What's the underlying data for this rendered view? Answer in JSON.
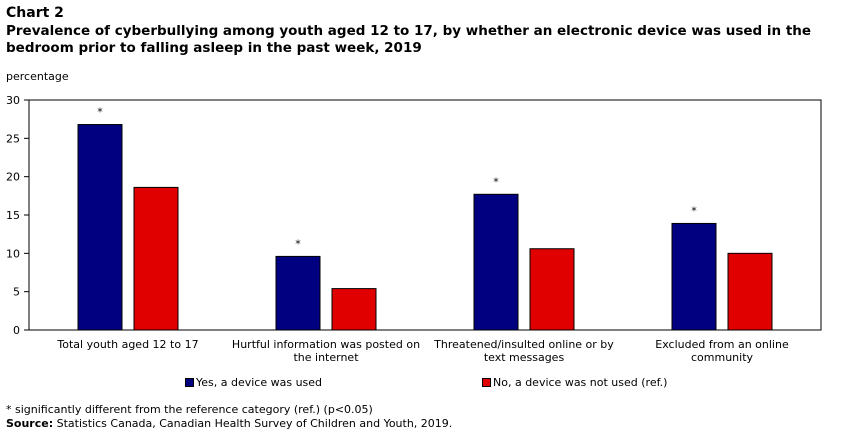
{
  "header": {
    "chart_number": "Chart 2",
    "title": "Prevalence of cyberbullying among youth aged 12 to 17, by whether an electronic device was used in the bedroom prior to falling asleep in the past week, 2019"
  },
  "chart_data": {
    "type": "bar",
    "ylabel": "percentage",
    "xlabel": "",
    "ylim": [
      0,
      30
    ],
    "yticks": [
      0,
      5,
      10,
      15,
      20,
      25,
      30
    ],
    "categories": [
      [
        "Total youth aged 12 to 17"
      ],
      [
        "Hurtful information was posted on",
        "the internet"
      ],
      [
        "Threatened/insulted online or by",
        "text messages"
      ],
      [
        "Excluded from an online",
        "community"
      ]
    ],
    "series": [
      {
        "name": "Yes, a device was used",
        "color": "#000080",
        "values": [
          26.8,
          9.6,
          17.7,
          13.9
        ],
        "significant": [
          true,
          true,
          true,
          true
        ]
      },
      {
        "name": "No, a device was not used (ref.)",
        "color": "#e00000",
        "values": [
          18.6,
          5.4,
          10.6,
          10.0
        ],
        "significant": [
          false,
          false,
          false,
          false
        ]
      }
    ],
    "significance_marker": "*",
    "legend_position": "bottom",
    "grid": false
  },
  "legend": {
    "yes_label": "Yes, a device was used",
    "no_label": "No, a device was not used (ref.)"
  },
  "footnote": "* significantly different from the reference category (ref.) (p<0.05)",
  "source": {
    "label": "Source:",
    "text": " Statistics Canada, Canadian Health Survey of Children and Youth, 2019."
  }
}
